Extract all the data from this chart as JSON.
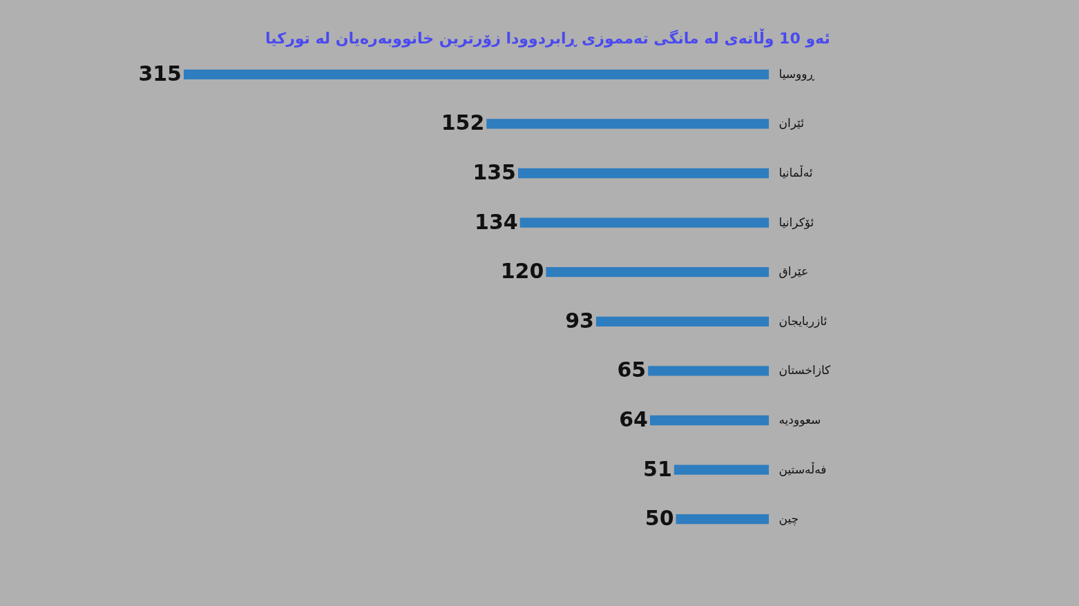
{
  "chart_data": {
    "type": "bar",
    "orientation": "horizontal",
    "title": "ئەو 10 وڵاتەی لە مانگی تەمموزی ڕابردوودا زۆرترین خانووبەرەیان لە تورکیا",
    "categories": [
      "ڕووسیا",
      "ئێران",
      "ئەڵمانیا",
      "ئۆکرانیا",
      "عێراق",
      "ئازربایجان",
      "کازاخستان",
      "سعوودیە",
      "فەڵەستین",
      "چین"
    ],
    "values": [
      315,
      152,
      135,
      134,
      120,
      93,
      65,
      64,
      51,
      50
    ],
    "color": "#2e7dbf",
    "data_labels": true,
    "grid": false
  }
}
